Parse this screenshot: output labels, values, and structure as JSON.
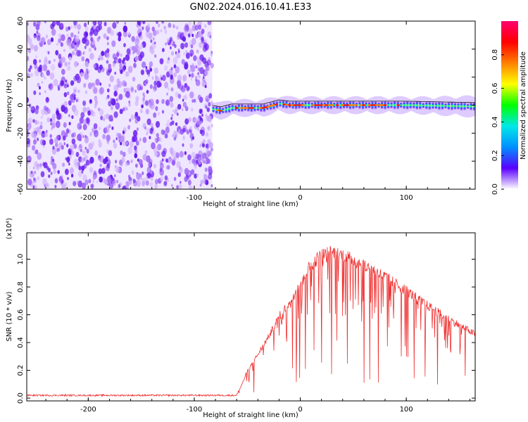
{
  "title": "GN02.2024.016.10.41.E33",
  "chart_data": [
    {
      "type": "heatmap",
      "xlabel": "Height of straight line (km)",
      "ylabel": "Frequency (Hz)",
      "xlim": [
        -258,
        165
      ],
      "ylim": [
        -60,
        60
      ],
      "xticks": [
        -200,
        -100,
        0,
        100
      ],
      "yticks": [
        -60,
        -40,
        -20,
        0,
        20,
        40,
        60
      ],
      "noise_region_x": [
        -258,
        -83
      ],
      "signal_band": {
        "x_start": -83,
        "x_end": 165,
        "centerline": [
          [
            -83,
            -3
          ],
          [
            -75,
            -4
          ],
          [
            -65,
            -2
          ],
          [
            -50,
            -2
          ],
          [
            -35,
            -2
          ],
          [
            -20,
            1
          ],
          [
            -10,
            0
          ],
          [
            0,
            0
          ],
          [
            50,
            0
          ],
          [
            100,
            0
          ],
          [
            165,
            -1
          ]
        ],
        "peak_amplitude_range": [
          -80,
          95
        ]
      },
      "colorbar": {
        "label": "Normalized spectral amplitude",
        "range": [
          0.0,
          1.0
        ],
        "ticks": [
          "0.0",
          "0.2",
          "0.4",
          "0.6",
          "0.8"
        ],
        "colors": [
          "#ffffff",
          "#5a00ff",
          "#0090ff",
          "#00e8e8",
          "#00ff00",
          "#ffff00",
          "#ff8000",
          "#ff0000",
          "#ff0070"
        ]
      }
    },
    {
      "type": "line",
      "xlabel": "Height of straight line (km)",
      "ylabel": "SNR (10 * v/v)",
      "yscale_label": "(x10⁴)",
      "xlim": [
        -258,
        165
      ],
      "ylim": [
        -0.02,
        1.19
      ],
      "xticks": [
        -200,
        -100,
        0,
        100
      ],
      "yticks": [
        "0.0",
        "0.2",
        "0.4",
        "0.6",
        "0.8",
        "1.0"
      ],
      "color": "#f03030",
      "envelope": {
        "x": [
          -258,
          -60,
          -55,
          -50,
          -40,
          -30,
          -20,
          -10,
          0,
          10,
          20,
          30,
          40,
          60,
          80,
          100,
          120,
          140,
          165
        ],
        "y": [
          0.02,
          0.02,
          0.1,
          0.2,
          0.32,
          0.45,
          0.6,
          0.7,
          0.85,
          0.98,
          1.05,
          1.07,
          1.05,
          0.98,
          0.89,
          0.79,
          0.68,
          0.58,
          0.47
        ]
      }
    }
  ]
}
